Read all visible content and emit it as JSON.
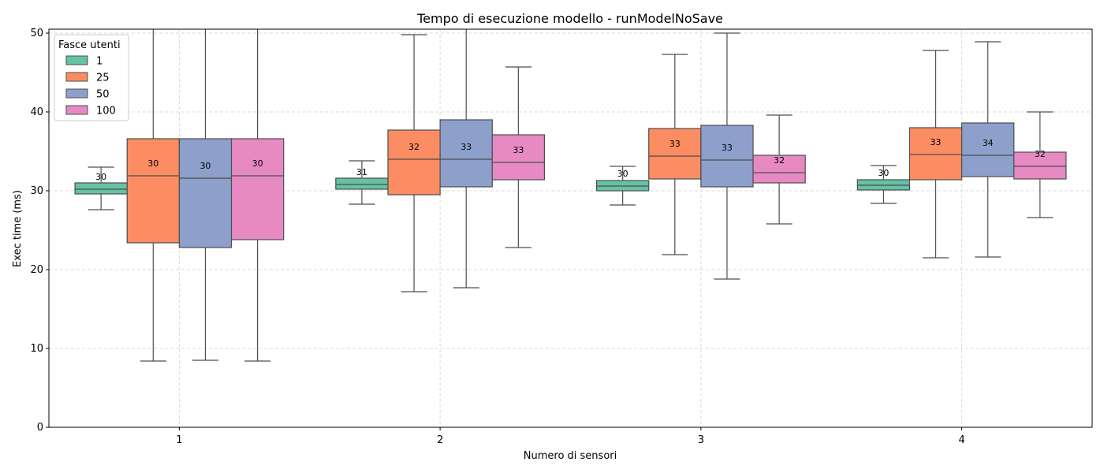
{
  "chart_data": {
    "type": "box",
    "title": "Tempo di esecuzione modello - runModelNoSave",
    "xlabel": "Numero di sensori",
    "ylabel": "Exec time (ms)",
    "categories": [
      "1",
      "2",
      "3",
      "4"
    ],
    "ylim": [
      0,
      50.5
    ],
    "yticks": [
      0,
      10,
      20,
      30,
      40,
      50
    ],
    "grid": true,
    "legend": {
      "title": "Fasce utenti",
      "placement": "top-left"
    },
    "series": [
      {
        "name": "1",
        "color": "#66c2a5",
        "boxes": [
          {
            "whislo": 27.6,
            "q1": 29.6,
            "med": 30.2,
            "q3": 31.0,
            "whishi": 33.0,
            "label": "30"
          },
          {
            "whislo": 28.3,
            "q1": 30.2,
            "med": 30.8,
            "q3": 31.6,
            "whishi": 33.8,
            "label": "31"
          },
          {
            "whislo": 28.2,
            "q1": 30.0,
            "med": 30.6,
            "q3": 31.3,
            "whishi": 33.1,
            "label": "30"
          },
          {
            "whislo": 28.4,
            "q1": 30.1,
            "med": 30.7,
            "q3": 31.4,
            "whishi": 33.2,
            "label": "30"
          }
        ]
      },
      {
        "name": "25",
        "color": "#fc8d62",
        "boxes": [
          {
            "whislo": 8.4,
            "q1": 23.4,
            "med": 31.9,
            "q3": 36.6,
            "whishi": 50.5,
            "label": "30"
          },
          {
            "whislo": 17.2,
            "q1": 29.5,
            "med": 34.0,
            "q3": 37.7,
            "whishi": 49.8,
            "label": "32"
          },
          {
            "whislo": 21.9,
            "q1": 31.5,
            "med": 34.4,
            "q3": 37.9,
            "whishi": 47.3,
            "label": "33"
          },
          {
            "whislo": 21.5,
            "q1": 31.4,
            "med": 34.6,
            "q3": 38.0,
            "whishi": 47.8,
            "label": "33"
          }
        ]
      },
      {
        "name": "50",
        "color": "#8da0cb",
        "boxes": [
          {
            "whislo": 8.5,
            "q1": 22.8,
            "med": 31.6,
            "q3": 36.6,
            "whishi": 50.5,
            "label": "30"
          },
          {
            "whislo": 17.7,
            "q1": 30.5,
            "med": 34.0,
            "q3": 39.0,
            "whishi": 50.5,
            "label": "33"
          },
          {
            "whislo": 18.8,
            "q1": 30.5,
            "med": 33.9,
            "q3": 38.3,
            "whishi": 50.0,
            "label": "33"
          },
          {
            "whislo": 21.6,
            "q1": 31.8,
            "med": 34.5,
            "q3": 38.6,
            "whishi": 48.9,
            "label": "34"
          }
        ]
      },
      {
        "name": "100",
        "color": "#e78ac3",
        "boxes": [
          {
            "whislo": 8.4,
            "q1": 23.8,
            "med": 31.9,
            "q3": 36.6,
            "whishi": 50.5,
            "label": "30"
          },
          {
            "whislo": 22.8,
            "q1": 31.4,
            "med": 33.6,
            "q3": 37.1,
            "whishi": 45.7,
            "label": "33"
          },
          {
            "whislo": 25.8,
            "q1": 31.0,
            "med": 32.3,
            "q3": 34.5,
            "whishi": 39.6,
            "label": "32"
          },
          {
            "whislo": 26.6,
            "q1": 31.5,
            "med": 33.1,
            "q3": 34.9,
            "whishi": 40.0,
            "label": "32"
          }
        ]
      }
    ]
  }
}
